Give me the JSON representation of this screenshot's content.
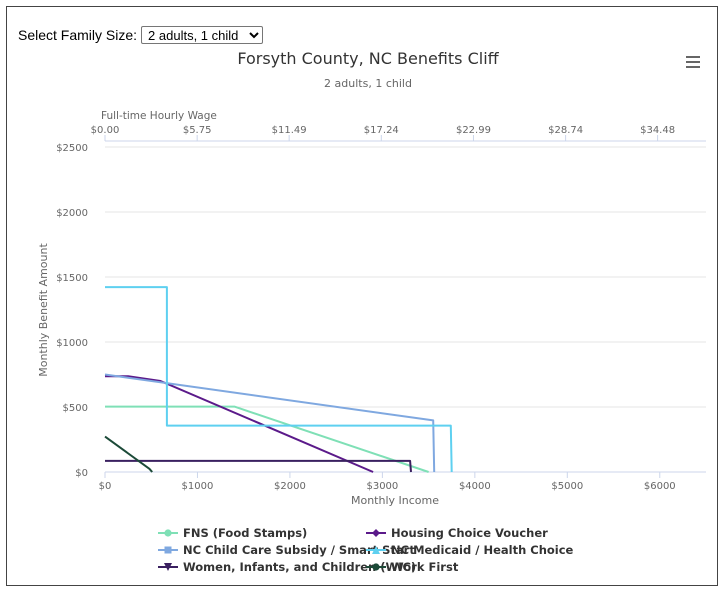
{
  "selector": {
    "label": "Select Family Size:",
    "selected": "2 adults, 1 child"
  },
  "menu": {
    "icon": "hamburger-menu-icon"
  },
  "chart_data": {
    "type": "line",
    "title": "Forsyth County, NC Benefits Cliff",
    "subtitle": "2 adults, 1 child",
    "xlabel": "Monthly Income",
    "ylabel": "Monthly Benefit Amount",
    "secondary_xlabel": "Full-time Hourly Wage",
    "xlim": [
      0,
      6500
    ],
    "ylim": [
      0,
      2500
    ],
    "x_ticks": [
      0,
      1000,
      2000,
      3000,
      4000,
      5000,
      6000
    ],
    "x_tick_labels": [
      "$0",
      "$1000",
      "$2000",
      "$3000",
      "$4000",
      "$5000",
      "$6000"
    ],
    "y_ticks": [
      0,
      500,
      1000,
      1500,
      2000,
      2500
    ],
    "y_tick_labels": [
      "$0",
      "$500",
      "$1000",
      "$1500",
      "$2000",
      "$2500"
    ],
    "top_ticks": [
      0,
      996.7,
      1991.6,
      2988.3,
      3985,
      4981.7,
      5976.5
    ],
    "top_tick_labels": [
      "$0.00",
      "$5.75",
      "$11.49",
      "$17.24",
      "$22.99",
      "$28.74",
      "$34.48"
    ],
    "grid": true,
    "legend_position": "bottom",
    "series": [
      {
        "name": "FNS (Food Stamps)",
        "color": "#7fe0b6",
        "marker": "circle",
        "points": [
          [
            0,
            503
          ],
          [
            1400,
            503
          ],
          [
            3500,
            0
          ]
        ]
      },
      {
        "name": "Housing Choice Voucher",
        "color": "#5b1a8a",
        "marker": "diamond",
        "points": [
          [
            0,
            737
          ],
          [
            250,
            737
          ],
          [
            600,
            700
          ],
          [
            2900,
            0
          ]
        ]
      },
      {
        "name": "NC Child Care Subsidy / Smart Start",
        "color": "#7fa8e0",
        "marker": "square",
        "points": [
          [
            0,
            750
          ],
          [
            3550,
            397
          ],
          [
            3560,
            0
          ]
        ]
      },
      {
        "name": "NC Medicaid / Health Choice",
        "color": "#5ed0f0",
        "marker": "triangle",
        "points": [
          [
            0,
            1422
          ],
          [
            670,
            1422
          ],
          [
            670,
            357
          ],
          [
            3740,
            357
          ],
          [
            3750,
            0
          ]
        ]
      },
      {
        "name": "Women, Infants, and Children (WIC)",
        "color": "#3a2060",
        "marker": "triangle-down",
        "points": [
          [
            0,
            85
          ],
          [
            3300,
            85
          ],
          [
            3310,
            0
          ]
        ]
      },
      {
        "name": "Work First",
        "color": "#1c4a38",
        "marker": "circle",
        "points": [
          [
            0,
            272
          ],
          [
            480,
            25
          ],
          [
            510,
            0
          ]
        ]
      }
    ]
  }
}
